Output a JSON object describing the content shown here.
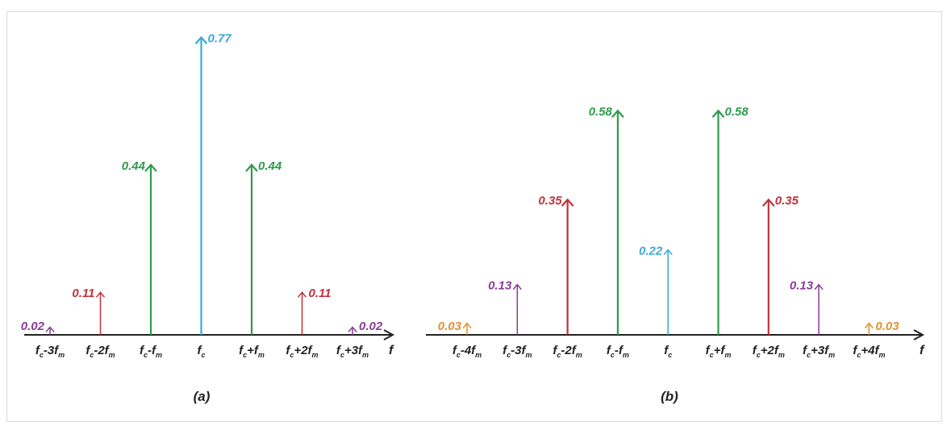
{
  "colors": {
    "fc": "#3aa8d8",
    "first": "#2f9a4c",
    "second": "#c0323a",
    "third": "#8a3d96",
    "fourth": "#e0922e",
    "axis": "#222222"
  },
  "chart_data": [
    {
      "type": "bar",
      "title": "",
      "panel_label": "(a)",
      "axis_label": "f",
      "xlabel": "f",
      "ylabel": "",
      "ylim": [
        0,
        0.8
      ],
      "grid": false,
      "categories": [
        "fc-3fm",
        "fc-2fm",
        "fc-fm",
        "fc",
        "fc+fm",
        "fc+2fm",
        "fc+3fm"
      ],
      "tick_labels": [
        {
          "base": "f",
          "base_sub": "c",
          "op": "-3",
          "mod": "f",
          "mod_sub": "m"
        },
        {
          "base": "f",
          "base_sub": "c",
          "op": "-2",
          "mod": "f",
          "mod_sub": "m"
        },
        {
          "base": "f",
          "base_sub": "c",
          "op": "-",
          "mod": "f",
          "mod_sub": "m"
        },
        {
          "base": "f",
          "base_sub": "c",
          "op": "",
          "mod": "",
          "mod_sub": ""
        },
        {
          "base": "f",
          "base_sub": "c",
          "op": "+",
          "mod": "f",
          "mod_sub": "m"
        },
        {
          "base": "f",
          "base_sub": "c",
          "op": "+2",
          "mod": "f",
          "mod_sub": "m"
        },
        {
          "base": "f",
          "base_sub": "c",
          "op": "+3",
          "mod": "f",
          "mod_sub": "m"
        }
      ],
      "values": [
        0.02,
        0.11,
        0.44,
        0.77,
        0.44,
        0.11,
        0.02
      ],
      "value_labels": [
        "0.02",
        "0.11",
        "0.44",
        "0.77",
        "0.44",
        "0.11",
        "0.02"
      ],
      "label_side": [
        "left",
        "left",
        "left",
        "right",
        "right",
        "right",
        "right"
      ],
      "color_keys": [
        "third",
        "second",
        "first",
        "fc",
        "first",
        "second",
        "third"
      ]
    },
    {
      "type": "bar",
      "title": "",
      "panel_label": "(b)",
      "axis_label": "f",
      "xlabel": "f",
      "ylabel": "",
      "ylim": [
        0,
        0.8
      ],
      "grid": false,
      "categories": [
        "fc-4fm",
        "fc-3fm",
        "fc-2fm",
        "fc-fm",
        "fc",
        "fc+fm",
        "fc+2fm",
        "fc+3fm",
        "fc+4fm"
      ],
      "tick_labels": [
        {
          "base": "f",
          "base_sub": "c",
          "op": "-4",
          "mod": "f",
          "mod_sub": "m"
        },
        {
          "base": "f",
          "base_sub": "c",
          "op": "-3",
          "mod": "f",
          "mod_sub": "m"
        },
        {
          "base": "f",
          "base_sub": "c",
          "op": "-2",
          "mod": "f",
          "mod_sub": "m"
        },
        {
          "base": "f",
          "base_sub": "c",
          "op": "-",
          "mod": "f",
          "mod_sub": "m"
        },
        {
          "base": "f",
          "base_sub": "c",
          "op": "",
          "mod": "",
          "mod_sub": ""
        },
        {
          "base": "f",
          "base_sub": "c",
          "op": "+",
          "mod": "f",
          "mod_sub": "m"
        },
        {
          "base": "f",
          "base_sub": "c",
          "op": "+2",
          "mod": "f",
          "mod_sub": "m"
        },
        {
          "base": "f",
          "base_sub": "c",
          "op": "+3",
          "mod": "f",
          "mod_sub": "m"
        },
        {
          "base": "f",
          "base_sub": "c",
          "op": "+4",
          "mod": "f",
          "mod_sub": "m"
        }
      ],
      "values": [
        0.03,
        0.13,
        0.35,
        0.58,
        0.22,
        0.58,
        0.35,
        0.13,
        0.03
      ],
      "value_labels": [
        "0.03",
        "0.13",
        "0.35",
        "0.58",
        "0.22",
        "0.58",
        "0.35",
        "0.13",
        "0.03"
      ],
      "label_side": [
        "left",
        "left",
        "left",
        "left",
        "left",
        "right",
        "right",
        "left",
        "right"
      ],
      "color_keys": [
        "fourth",
        "third",
        "second",
        "first",
        "fc",
        "first",
        "second",
        "third",
        "fourth"
      ]
    }
  ]
}
